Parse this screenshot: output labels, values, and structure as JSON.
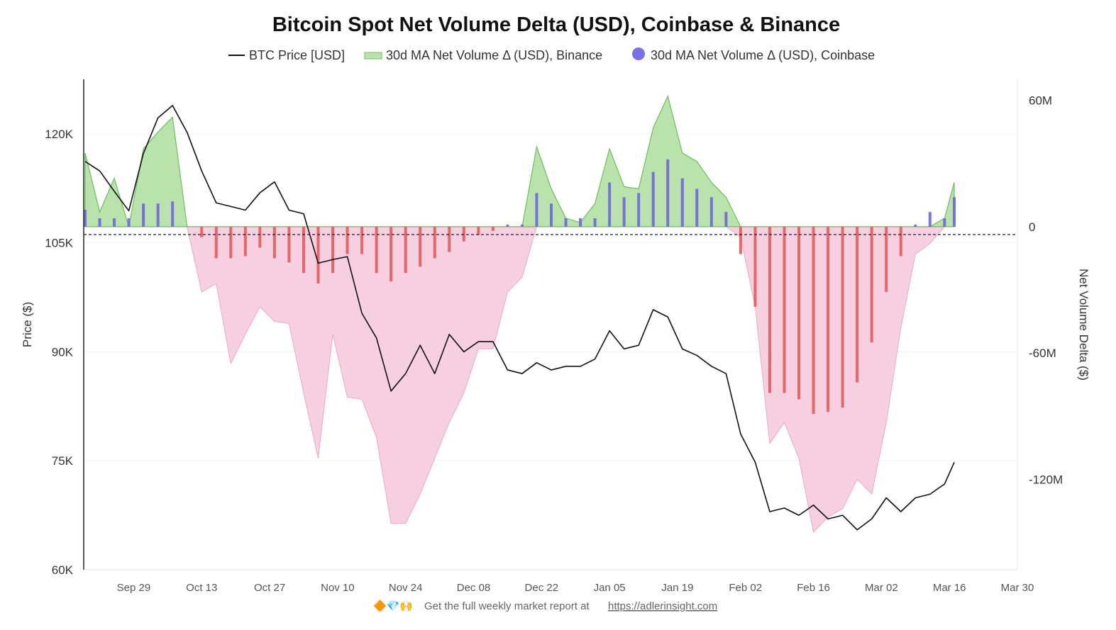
{
  "chart_data": {
    "type": "bar+line+area",
    "title": "Bitcoin Spot Net Volume Delta (USD), Coinbase & Binance",
    "legend": {
      "placement": "top-center",
      "entries": [
        "BTC Price [USD]",
        "30d MA Net Volume Δ (USD), Binance",
        "30d MA Net Volume Δ (USD), Coinbase"
      ]
    },
    "ylabel_left": "Price ($)",
    "ylabel_right": "Net Volume Delta ($)",
    "y_left": {
      "lim": [
        60,
        127.5
      ],
      "unit": "K USD",
      "ticks": [
        60,
        75,
        90,
        105,
        120
      ],
      "tick_labels": [
        "60K",
        "75K",
        "90K",
        "105K",
        "120K"
      ]
    },
    "y_right": {
      "lim": [
        -163,
        70
      ],
      "unit": "M USD",
      "ticks": [
        -120,
        -60,
        0,
        60
      ],
      "tick_labels": [
        "-120M",
        "-60M",
        "0",
        "60M"
      ]
    },
    "xlim": [
      "Sep 19",
      "Mar 30"
    ],
    "x_ticks": [
      "Sep 29",
      "Oct 13",
      "Oct 27",
      "Nov 10",
      "Nov 24",
      "Dec 08",
      "Dec 22",
      "Jan 05",
      "Jan 19",
      "Feb 02",
      "Feb 16",
      "Mar 02",
      "Mar 16",
      "Mar 30"
    ],
    "colors": {
      "price": "#111111",
      "binance_pos_fill": "#b9e2ad",
      "binance_pos_line": "#6cbf5a",
      "binance_neg_fill": "#f6cfe0",
      "binance_neg_line": "#eea8c6",
      "coinbase_pos": "#6f66db",
      "coinbase_neg": "#e45a5a"
    },
    "x": [
      "Sep 19",
      "Sep 22",
      "Sep 25",
      "Sep 28",
      "Oct 01",
      "Oct 04",
      "Oct 07",
      "Oct 10",
      "Oct 13",
      "Oct 16",
      "Oct 19",
      "Oct 22",
      "Oct 25",
      "Oct 28",
      "Oct 31",
      "Nov 03",
      "Nov 06",
      "Nov 09",
      "Nov 12",
      "Nov 15",
      "Nov 18",
      "Nov 21",
      "Nov 24",
      "Nov 27",
      "Nov 30",
      "Dec 03",
      "Dec 06",
      "Dec 09",
      "Dec 12",
      "Dec 15",
      "Dec 18",
      "Dec 21",
      "Dec 24",
      "Dec 27",
      "Dec 30",
      "Jan 02",
      "Jan 05",
      "Jan 08",
      "Jan 11",
      "Jan 14",
      "Jan 17",
      "Jan 20",
      "Jan 23",
      "Jan 26",
      "Jan 29",
      "Feb 01",
      "Feb 04",
      "Feb 07",
      "Feb 10",
      "Feb 13",
      "Feb 16",
      "Feb 19",
      "Feb 22",
      "Feb 25",
      "Feb 28",
      "Mar 03",
      "Mar 06",
      "Mar 09",
      "Mar 12",
      "Mar 15",
      "Mar 17"
    ],
    "series": [
      {
        "name": "BTC Price [USD]",
        "axis": "left",
        "unit": "K USD",
        "values": [
          116.2,
          114.9,
          112.1,
          109.4,
          117.3,
          122.2,
          123.9,
          120.2,
          114.9,
          110.5,
          110.0,
          109.5,
          111.9,
          113.4,
          109.5,
          109.0,
          102.2,
          102.7,
          103.1,
          95.3,
          91.9,
          84.6,
          87.0,
          90.9,
          87.0,
          92.4,
          90.0,
          91.4,
          91.4,
          87.5,
          87.0,
          88.5,
          87.5,
          88.0,
          88.0,
          89.0,
          92.9,
          90.4,
          90.9,
          95.8,
          94.8,
          90.4,
          89.5,
          88.0,
          87.0,
          78.7,
          74.8,
          68.0,
          68.5,
          67.5,
          68.9,
          67.0,
          67.5,
          65.5,
          67.0,
          69.9,
          68.0,
          69.9,
          70.4,
          71.8,
          74.8
        ]
      },
      {
        "name": "30d MA Net Volume Δ (USD), Binance",
        "axis": "right",
        "unit": "M USD",
        "values": [
          35,
          7,
          23,
          0,
          37,
          45,
          52,
          0,
          -31,
          -27,
          -65,
          -51,
          -38,
          -45,
          -46,
          -79,
          -110,
          -51,
          -81,
          -82,
          -100,
          -141,
          -141,
          -127,
          -110,
          -93,
          -79,
          -58,
          -58,
          -31,
          -24,
          38,
          18,
          4,
          2,
          11,
          37,
          19,
          18,
          47,
          62,
          35,
          31,
          21,
          14,
          -5,
          -38,
          -103,
          -93,
          -110,
          -145,
          -138,
          -134,
          -120,
          -127,
          -93,
          -48,
          -13,
          -8,
          4,
          21
        ]
      },
      {
        "name": "30d MA Net Volume Δ (USD), Coinbase",
        "axis": "right",
        "unit": "M USD",
        "values": [
          8,
          4,
          4,
          4,
          11,
          11,
          12,
          0,
          -5,
          -15,
          -15,
          -14,
          -10,
          -15,
          -17,
          -22,
          -27,
          -22,
          -13,
          -13,
          -22,
          -26,
          -22,
          -19,
          -15,
          -12,
          -7,
          -4,
          -2,
          1,
          1,
          16,
          11,
          4,
          4,
          4,
          21,
          14,
          16,
          26,
          32,
          23,
          18,
          14,
          7,
          -13,
          -38,
          -79,
          -79,
          -82,
          -89,
          -88,
          -86,
          -74,
          -55,
          -31,
          -14,
          1,
          7,
          4,
          14
        ]
      }
    ],
    "grid": "faint horizontal",
    "zero_line": "dashed"
  },
  "footer": {
    "emojis": "🔶💎🙌",
    "text": "Get the full weekly market report at",
    "link": "https://adlerinsight.com"
  }
}
